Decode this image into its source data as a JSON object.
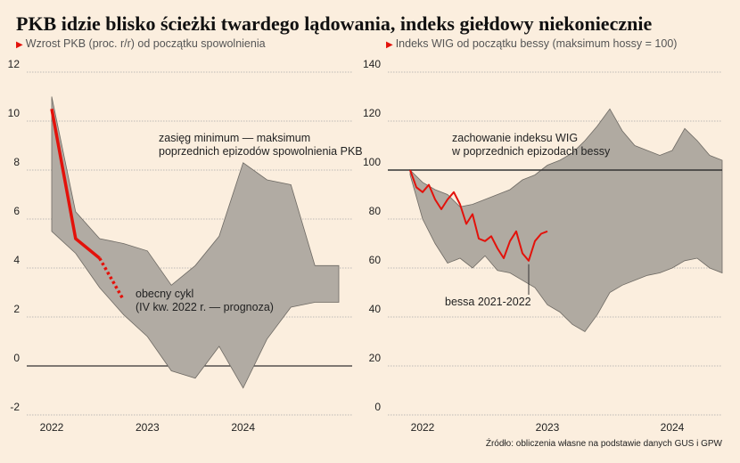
{
  "title": "PKB idzie blisko ścieżki twardego lądowania, indeks giełdowy niekoniecznie",
  "source": "Źródło: obliczenia własne na podstawie danych GUS i GPW",
  "colors": {
    "accent": "#e3120b",
    "band": "#b1aba3",
    "background": "#fbeede"
  },
  "chart_data": [
    {
      "id": "pkb",
      "type": "area",
      "subtitle": "Wzrost PKB (proc. r/r) od początku spowolnienia",
      "ylim": [
        -2,
        12
      ],
      "yticks": [
        -2,
        0,
        2,
        4,
        6,
        8,
        10,
        12
      ],
      "xlim": [
        2022.0,
        2025.0
      ],
      "xticks": [
        {
          "value": 2022.0,
          "label": "2022"
        },
        {
          "value": 2023.0,
          "label": "2023"
        },
        {
          "value": 2024.0,
          "label": "2024"
        }
      ],
      "band": {
        "name": "zasięg minimum — maksimum poprzednich epizodów spowolnienia PKB",
        "x": [
          2022.0,
          2022.25,
          2022.5,
          2022.75,
          2023.0,
          2023.25,
          2023.5,
          2023.75,
          2024.0,
          2024.25,
          2024.5,
          2024.75,
          2025.0
        ],
        "upper": [
          11.0,
          6.3,
          5.2,
          5.0,
          4.7,
          3.3,
          4.1,
          5.3,
          8.3,
          7.6,
          7.4,
          4.1,
          4.1
        ],
        "lower": [
          5.5,
          4.6,
          3.2,
          2.1,
          1.2,
          -0.2,
          -0.5,
          0.8,
          -0.9,
          1.1,
          2.4,
          2.6,
          2.6
        ]
      },
      "current_cycle": {
        "name": "obecny cykl",
        "x": [
          2022.0,
          2022.25,
          2022.5
        ],
        "values": [
          10.5,
          5.2,
          4.4
        ]
      },
      "forecast": {
        "x": [
          2022.5,
          2022.75
        ],
        "values": [
          4.4,
          2.7
        ]
      },
      "annotations": {
        "band_label": [
          "zasięg minimum — maksimum",
          "poprzednich epizodów spowolnienia PKB"
        ],
        "current_label": [
          "obecny cykl",
          "(IV kw. 2022 r. — prognoza)"
        ]
      }
    },
    {
      "id": "wig",
      "type": "area",
      "subtitle": "Indeks WIG od początku bessy (maksimum hossy = 100)",
      "ylim": [
        0,
        140
      ],
      "yticks": [
        0,
        20,
        40,
        60,
        80,
        100,
        120,
        140
      ],
      "xlim": [
        2021.9,
        2024.4
      ],
      "xticks": [
        {
          "value": 2022.0,
          "label": "2022"
        },
        {
          "value": 2023.0,
          "label": "2023"
        },
        {
          "value": 2024.0,
          "label": "2024"
        }
      ],
      "reference_line": 100,
      "band": {
        "name": "zachowanie indeksu WIG w poprzednich epizodach bessy",
        "x": [
          2021.9,
          2022.0,
          2022.1,
          2022.2,
          2022.3,
          2022.4,
          2022.5,
          2022.6,
          2022.7,
          2022.8,
          2022.9,
          2023.0,
          2023.1,
          2023.2,
          2023.3,
          2023.4,
          2023.5,
          2023.6,
          2023.7,
          2023.8,
          2023.9,
          2024.0,
          2024.1,
          2024.2,
          2024.3,
          2024.4
        ],
        "upper": [
          100,
          95,
          92,
          90,
          85,
          86,
          88,
          90,
          92,
          96,
          98,
          102,
          104,
          107,
          112,
          118,
          125,
          116,
          110,
          108,
          106,
          108,
          117,
          112,
          106,
          104
        ],
        "lower": [
          98,
          80,
          70,
          62,
          64,
          60,
          65,
          59,
          58,
          55,
          52,
          45,
          42,
          37,
          34,
          41,
          50,
          53,
          55,
          57,
          58,
          60,
          63,
          64,
          60,
          58
        ]
      },
      "current_cycle": {
        "name": "bessa 2021-2022",
        "x": [
          2021.9,
          2021.95,
          2022.0,
          2022.05,
          2022.1,
          2022.15,
          2022.2,
          2022.25,
          2022.3,
          2022.35,
          2022.4,
          2022.45,
          2022.5,
          2022.55,
          2022.6,
          2022.65,
          2022.7,
          2022.75,
          2022.8,
          2022.85,
          2022.9,
          2022.95,
          2023.0
        ],
        "values": [
          100,
          93,
          91,
          94,
          88,
          84,
          88,
          91,
          86,
          78,
          82,
          72,
          71,
          73,
          68,
          64,
          71,
          75,
          66,
          63,
          71,
          74,
          75
        ]
      },
      "annotations": {
        "band_label": [
          "zachowanie indeksu WIG",
          "w poprzednich epizodach bessy"
        ],
        "current_label": [
          "bessa 2021-2022"
        ]
      }
    }
  ]
}
